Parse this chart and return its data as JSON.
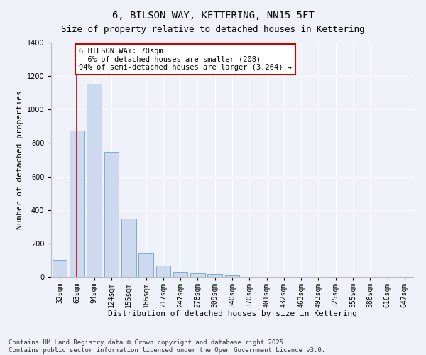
{
  "title": "6, BILSON WAY, KETTERING, NN15 5FT",
  "subtitle": "Size of property relative to detached houses in Kettering",
  "xlabel": "Distribution of detached houses by size in Kettering",
  "ylabel": "Number of detached properties",
  "categories": [
    "32sqm",
    "63sqm",
    "94sqm",
    "124sqm",
    "155sqm",
    "186sqm",
    "217sqm",
    "247sqm",
    "278sqm",
    "309sqm",
    "340sqm",
    "370sqm",
    "401sqm",
    "432sqm",
    "463sqm",
    "493sqm",
    "525sqm",
    "555sqm",
    "586sqm",
    "616sqm",
    "647sqm"
  ],
  "values": [
    100,
    875,
    1155,
    748,
    350,
    140,
    68,
    30,
    22,
    15,
    10,
    0,
    0,
    0,
    0,
    0,
    0,
    0,
    0,
    0,
    0
  ],
  "bar_color": "#ccd9ee",
  "bar_edge_color": "#7aadd4",
  "vline_x_index": 1,
  "vline_color": "#cc0000",
  "annotation_text": "6 BILSON WAY: 70sqm\n← 6% of detached houses are smaller (208)\n94% of semi-detached houses are larger (3,264) →",
  "annotation_box_facecolor": "#ffffff",
  "annotation_box_edgecolor": "#cc0000",
  "ylim": [
    0,
    1400
  ],
  "yticks": [
    0,
    200,
    400,
    600,
    800,
    1000,
    1200,
    1400
  ],
  "footer_line1": "Contains HM Land Registry data © Crown copyright and database right 2025.",
  "footer_line2": "Contains public sector information licensed under the Open Government Licence v3.0.",
  "bg_color": "#eef2f8",
  "plot_bg_color": "#eef2f8",
  "grid_color": "#ffffff",
  "title_fontsize": 10,
  "axis_label_fontsize": 8,
  "tick_fontsize": 7,
  "annotation_fontsize": 7.5,
  "footer_fontsize": 6.5
}
